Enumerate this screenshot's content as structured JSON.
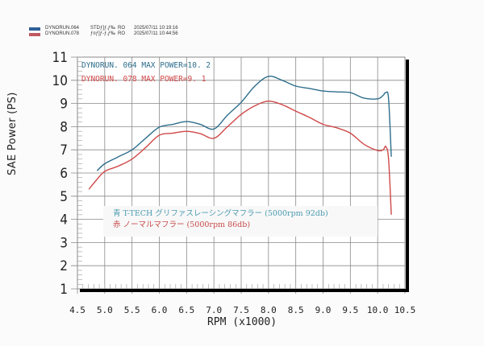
{
  "header_legend": [
    {
      "run": "DYNORUN.064",
      "mode": "STDƒ]ƒ‚ƒ‰",
      "code": "RO",
      "datetime": "2025/07/11 10:19:16",
      "color": "#2f5f96"
    },
    {
      "run": "DYNORUN.078",
      "mode": "ƒ¤ƒ]ƒ-ƒ‚ƒ‰",
      "code": "RO",
      "datetime": "2025/07/11 10:44:56",
      "color": "#c0585f"
    }
  ],
  "run_labels": [
    {
      "text": "DYNORUN. 064   MAX POWER=10. 2",
      "color": "#2e6e8c"
    },
    {
      "text": "DYNORUN. 078   MAX POWER=9. 1",
      "color": "#d04848"
    }
  ],
  "caption": {
    "blue_line": "青  T-TECH グリファスレーシングマフラー  (5000rpm 92db)",
    "red_line": "赤  ノーマルマフラー  (5000rpm 86db)"
  },
  "axis": {
    "ylabel": "SAE Power  (PS)",
    "xlabel": "RPM (x1000)",
    "yticks": [
      "1",
      "2",
      "3",
      "4",
      "5",
      "6",
      "7",
      "8",
      "9",
      "10",
      "11"
    ],
    "xticks": [
      "4.5",
      "5.0",
      "5.5",
      "6.0",
      "6.5",
      "7.0",
      "7.5",
      "8.0",
      "8.5",
      "9.0",
      "9.5",
      "10.0",
      "10.5"
    ]
  },
  "chart_data": {
    "type": "line",
    "title": "",
    "xlabel": "RPM (x1000)",
    "ylabel": "SAE Power (PS)",
    "xlim": [
      4.5,
      10.5
    ],
    "ylim": [
      1,
      11
    ],
    "grid": true,
    "legend_position": "top-left",
    "series": [
      {
        "name": "DYNORUN.064 (Blue) T-TECH グリファスレーシングマフラー (5000rpm 92db)",
        "color": "#2e6e8c",
        "max_power": 10.2,
        "x": [
          4.86,
          5.0,
          5.25,
          5.5,
          5.75,
          6.0,
          6.25,
          6.5,
          6.75,
          7.0,
          7.25,
          7.5,
          7.75,
          8.0,
          8.25,
          8.5,
          8.75,
          9.0,
          9.25,
          9.5,
          9.75,
          10.0,
          10.1,
          10.15,
          10.2,
          10.25
        ],
        "y": [
          6.1,
          6.4,
          6.7,
          7.0,
          7.5,
          7.98,
          8.1,
          8.22,
          8.1,
          7.9,
          8.5,
          9.05,
          9.75,
          10.17,
          10.0,
          9.75,
          9.65,
          9.54,
          9.5,
          9.47,
          9.23,
          9.2,
          9.35,
          9.47,
          9.2,
          6.7
        ]
      },
      {
        "name": "DYNORUN.078 (Red) ノーマルマフラー (5000rpm 86db)",
        "color": "#d04848",
        "max_power": 9.1,
        "x": [
          4.71,
          4.85,
          5.0,
          5.25,
          5.5,
          5.75,
          6.0,
          6.25,
          6.5,
          6.75,
          7.0,
          7.25,
          7.5,
          7.75,
          8.0,
          8.25,
          8.5,
          8.75,
          9.0,
          9.25,
          9.5,
          9.75,
          10.0,
          10.1,
          10.15,
          10.2,
          10.25
        ],
        "y": [
          5.3,
          5.7,
          6.07,
          6.3,
          6.6,
          7.1,
          7.63,
          7.72,
          7.8,
          7.7,
          7.5,
          8.0,
          8.53,
          8.9,
          9.1,
          8.95,
          8.67,
          8.4,
          8.1,
          7.95,
          7.72,
          7.24,
          6.97,
          7.0,
          7.14,
          6.6,
          4.2
        ]
      }
    ]
  }
}
